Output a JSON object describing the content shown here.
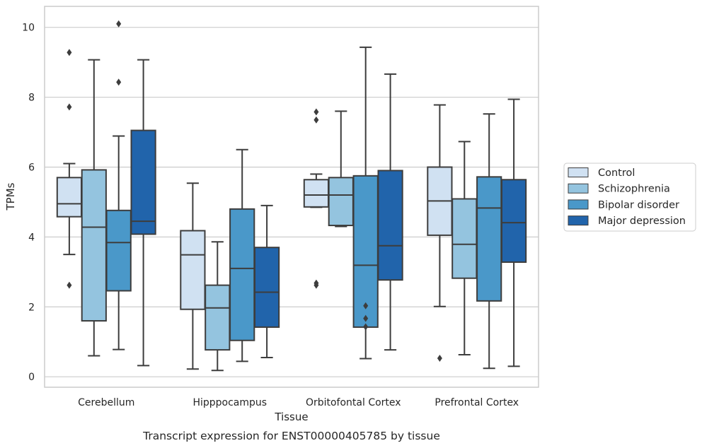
{
  "chart_data": {
    "type": "boxplot",
    "title": "",
    "caption": "Transcript expression for ENST00000405785 by tissue",
    "xlabel": "Tissue",
    "ylabel": "TPMs",
    "ylim": [
      -0.3,
      10.6
    ],
    "yticks": [
      0,
      2,
      4,
      6,
      8,
      10
    ],
    "grid": "horizontal",
    "legend_position": "right",
    "categories": [
      "Cerebellum",
      "Hipppocampus",
      "Orbitofontal Cortex",
      "Prefrontal Cortex"
    ],
    "series": [
      {
        "name": "Control",
        "color": "#d0e1f2",
        "boxes": [
          {
            "min": 3.5,
            "q1": 4.58,
            "median": 4.95,
            "q3": 5.7,
            "max": 6.1,
            "outliers": [
              9.28,
              7.72,
              2.62
            ]
          },
          {
            "min": 0.22,
            "q1": 1.93,
            "median": 3.49,
            "q3": 4.18,
            "max": 5.54,
            "outliers": []
          },
          {
            "min": 4.85,
            "q1": 4.86,
            "median": 5.2,
            "q3": 5.64,
            "max": 5.8,
            "outliers": [
              7.58,
              7.35,
              2.68,
              2.62
            ]
          },
          {
            "min": 2.01,
            "q1": 4.05,
            "median": 5.03,
            "q3": 6.0,
            "max": 7.78,
            "outliers": [
              0.53
            ]
          }
        ]
      },
      {
        "name": "Schizophrenia",
        "color": "#94c4df",
        "boxes": [
          {
            "min": 0.6,
            "q1": 1.6,
            "median": 4.28,
            "q3": 5.92,
            "max": 9.07,
            "outliers": []
          },
          {
            "min": 0.18,
            "q1": 0.77,
            "median": 1.97,
            "q3": 2.62,
            "max": 3.86,
            "outliers": []
          },
          {
            "min": 4.3,
            "q1": 4.33,
            "median": 5.2,
            "q3": 5.7,
            "max": 7.6,
            "outliers": []
          },
          {
            "min": 0.63,
            "q1": 2.82,
            "median": 3.79,
            "q3": 5.09,
            "max": 6.73,
            "outliers": []
          }
        ]
      },
      {
        "name": "Bipolar disorder",
        "color": "#4a98c9",
        "boxes": [
          {
            "min": 0.78,
            "q1": 2.46,
            "median": 3.84,
            "q3": 4.76,
            "max": 6.89,
            "outliers": [
              10.1,
              8.43
            ]
          },
          {
            "min": 0.44,
            "q1": 1.04,
            "median": 3.1,
            "q3": 4.8,
            "max": 6.5,
            "outliers": []
          },
          {
            "min": 0.52,
            "q1": 1.42,
            "median": 3.19,
            "q3": 5.75,
            "max": 9.43,
            "outliers": [
              2.03,
              1.67,
              1.43
            ]
          },
          {
            "min": 0.24,
            "q1": 2.17,
            "median": 4.83,
            "q3": 5.72,
            "max": 7.52,
            "outliers": []
          }
        ]
      },
      {
        "name": "Major depression",
        "color": "#2164ab",
        "boxes": [
          {
            "min": 0.32,
            "q1": 4.08,
            "median": 4.45,
            "q3": 7.05,
            "max": 9.07,
            "outliers": []
          },
          {
            "min": 0.55,
            "q1": 1.42,
            "median": 2.42,
            "q3": 3.7,
            "max": 4.9,
            "outliers": []
          },
          {
            "min": 0.77,
            "q1": 2.77,
            "median": 3.75,
            "q3": 5.9,
            "max": 8.66,
            "outliers": []
          },
          {
            "min": 0.3,
            "q1": 3.28,
            "median": 4.41,
            "q3": 5.64,
            "max": 7.94,
            "outliers": []
          }
        ]
      }
    ]
  }
}
